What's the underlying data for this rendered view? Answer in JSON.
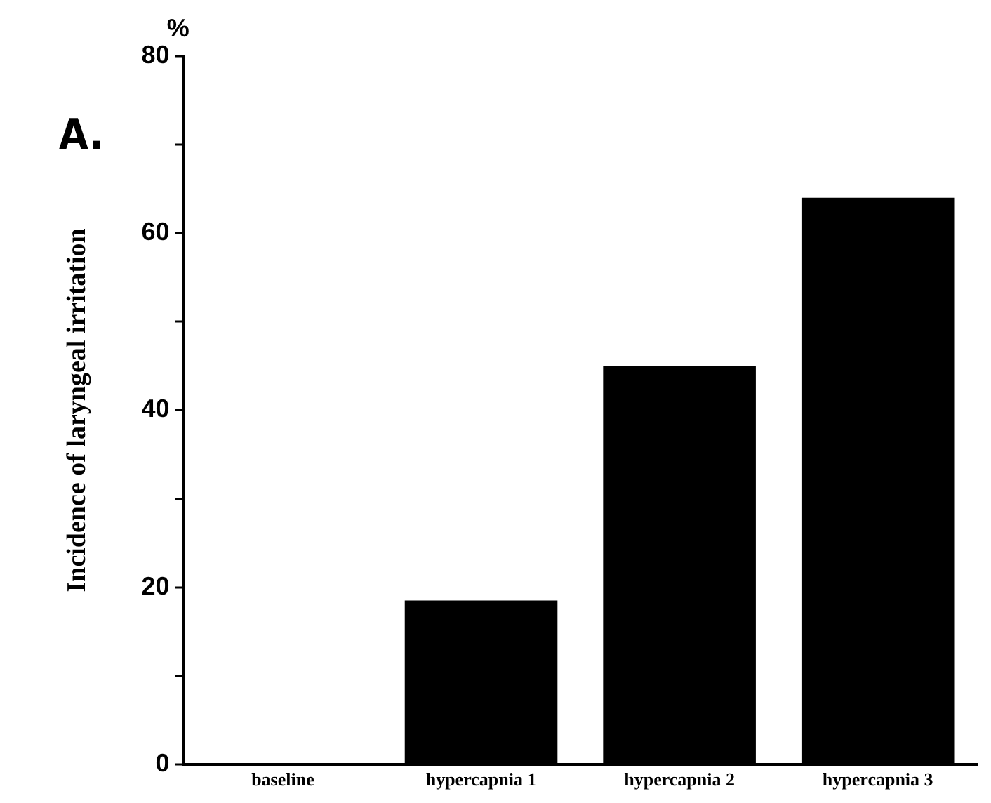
{
  "chart_data": {
    "type": "bar",
    "ylabel": "Incidence of laryngeal irritation",
    "annotations": [
      "A.",
      "%"
    ],
    "categories": [
      "baseline",
      "hypercapnia 1",
      "hypercapnia 2",
      "hypercapnia 3"
    ],
    "values": [
      0,
      18.5,
      45,
      64
    ],
    "color": "#000000",
    "ylim": [
      0,
      80
    ],
    "yticks": [
      0,
      {
        "value": 10,
        "label": null
      },
      20,
      {
        "value": 30,
        "label": null
      },
      40,
      {
        "value": 50,
        "label": null
      },
      60,
      {
        "value": 70,
        "label": null
      },
      80
    ],
    "grid": false,
    "legend": false
  }
}
